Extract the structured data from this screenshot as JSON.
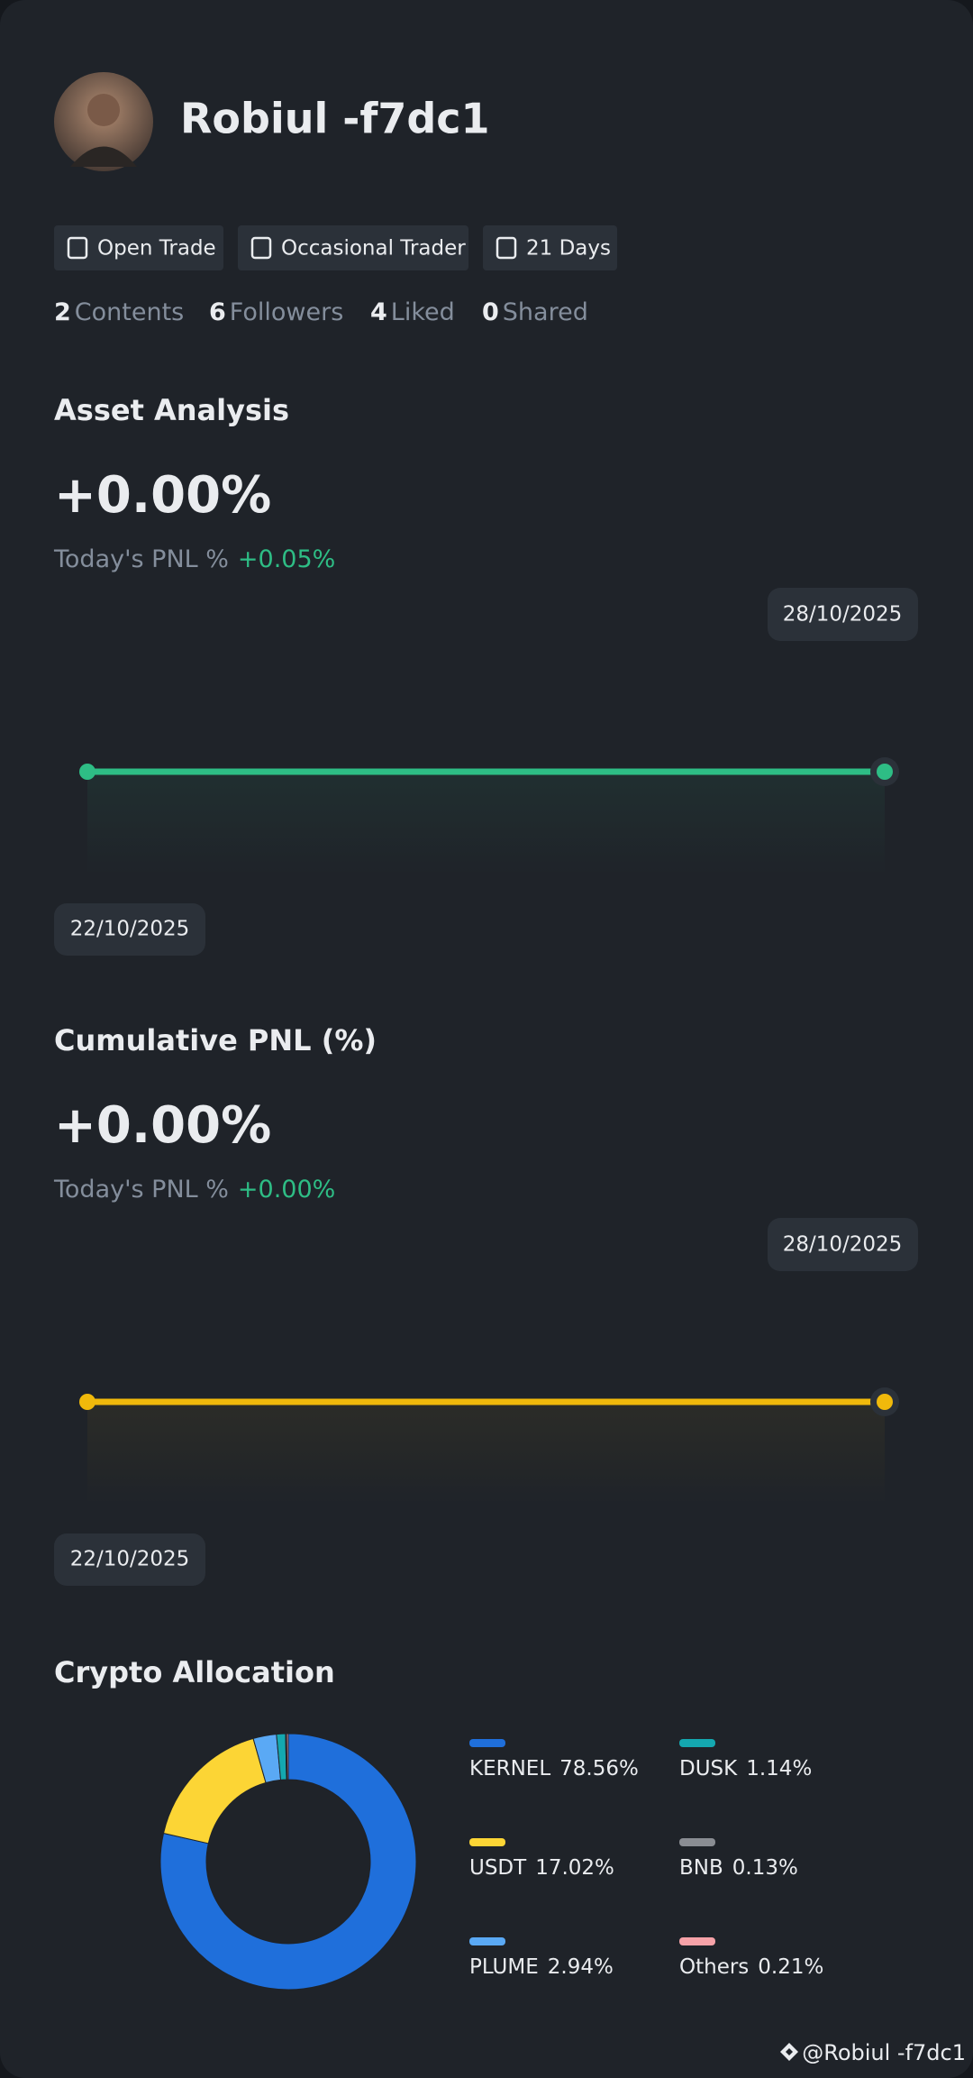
{
  "profile": {
    "name": "Robiul -f7dc1",
    "badges": [
      "Open Trade",
      "Occasional Trader",
      "21 Days"
    ],
    "stats": [
      {
        "value": 2,
        "label": "Contents"
      },
      {
        "value": 6,
        "label": "Followers"
      },
      {
        "value": 4,
        "label": "Liked"
      },
      {
        "value": 0,
        "label": "Shared"
      }
    ]
  },
  "asset_analysis": {
    "title": "Asset Analysis",
    "value": "+0.00%",
    "today_label": "Today's PNL %",
    "today_value": "+0.05%",
    "chart": {
      "type": "line",
      "x": [
        "22/10/2025",
        "28/10/2025"
      ],
      "values": [
        0,
        0
      ],
      "color": "#2ebd85"
    }
  },
  "cumulative_pnl": {
    "title": "Cumulative PNL (%)",
    "value": "+0.00%",
    "today_label": "Today's PNL %",
    "today_value": "+0.00%",
    "chart": {
      "type": "line",
      "x": [
        "22/10/2025",
        "28/10/2025"
      ],
      "values": [
        0,
        0
      ],
      "color": "#f0b90b"
    }
  },
  "crypto_allocation": {
    "title": "Crypto Allocation",
    "chart": {
      "type": "pie",
      "categories": [
        "KERNEL",
        "USDT",
        "PLUME",
        "DUSK",
        "BNB",
        "Others"
      ],
      "values": [
        78.56,
        17.02,
        2.94,
        1.14,
        0.13,
        0.21
      ],
      "value_labels": [
        "78.56%",
        "17.02%",
        "2.94%",
        "1.14%",
        "0.13%",
        "0.21%"
      ],
      "colors": [
        "#1f6fdb",
        "#fcd535",
        "#5aa9f5",
        "#14a8b0",
        "#8a8d93",
        "#f6a2a8"
      ]
    }
  },
  "watermark": "@Robiul -f7dc1"
}
